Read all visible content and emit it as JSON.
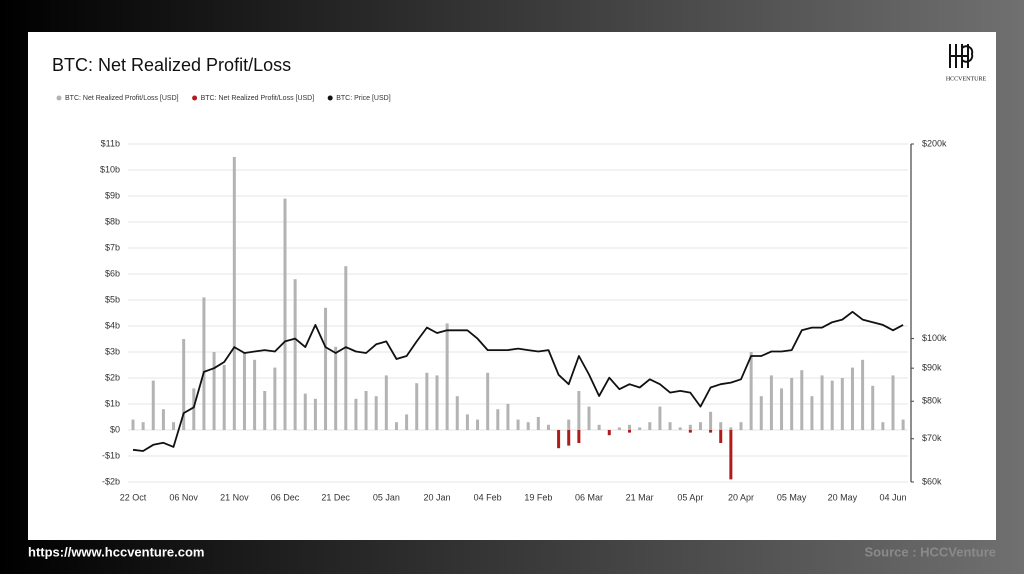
{
  "chart_data": {
    "type": "combo",
    "title": "BTC: Net Realized Profit/Loss",
    "categories": [
      "22 Oct",
      null,
      null,
      null,
      null,
      "06 Nov",
      null,
      null,
      null,
      null,
      "21 Nov",
      null,
      null,
      null,
      null,
      "06 Dec",
      null,
      null,
      null,
      null,
      "21 Dec",
      null,
      null,
      null,
      null,
      "05 Jan",
      null,
      null,
      null,
      null,
      "20 Jan",
      null,
      null,
      null,
      null,
      "04 Feb",
      null,
      null,
      null,
      null,
      "19 Feb",
      null,
      null,
      null,
      null,
      "06 Mar",
      null,
      null,
      null,
      null,
      "21 Mar",
      null,
      null,
      null,
      null,
      "05 Apr",
      null,
      null,
      null,
      null,
      "20 Apr",
      null,
      null,
      null,
      null,
      "05 May",
      null,
      null,
      null,
      null,
      "20 May",
      null,
      null,
      null,
      null,
      "04 Jun",
      null
    ],
    "series": [
      {
        "name": "BTC: Net Realized Profit/Loss [USD]",
        "type": "bar",
        "color": "#b3b3b3",
        "values": [
          0.4,
          0.3,
          1.9,
          0.8,
          0.3,
          3.5,
          1.6,
          5.1,
          3.0,
          2.5,
          10.5,
          3.0,
          2.7,
          1.5,
          2.4,
          8.9,
          5.8,
          1.4,
          1.2,
          4.7,
          3.2,
          6.3,
          1.2,
          1.5,
          1.3,
          2.1,
          0.3,
          0.6,
          1.8,
          2.2,
          2.1,
          4.1,
          1.3,
          0.6,
          0.4,
          2.2,
          0.8,
          1.0,
          0.4,
          0.3,
          0.5,
          0.2,
          null,
          0.4,
          1.5,
          0.9,
          0.2,
          null,
          0.1,
          0.2,
          0.1,
          0.3,
          0.9,
          0.3,
          0.1,
          0.2,
          0.3,
          0.7,
          0.3,
          0.1,
          0.3,
          3.0,
          1.3,
          2.1,
          1.6,
          2.0,
          2.3,
          1.3,
          2.1,
          1.9,
          2.0,
          2.4,
          2.7,
          1.7,
          0.3,
          2.1,
          0.4
        ]
      },
      {
        "name": "BTC: Net Realized Profit/Loss [USD]",
        "type": "bar",
        "color": "#b01c1c",
        "values": [
          null,
          null,
          null,
          null,
          null,
          null,
          null,
          null,
          null,
          null,
          null,
          null,
          null,
          null,
          null,
          null,
          null,
          null,
          null,
          null,
          null,
          null,
          null,
          null,
          null,
          null,
          null,
          null,
          null,
          null,
          null,
          null,
          null,
          null,
          null,
          null,
          null,
          null,
          null,
          null,
          null,
          null,
          -0.7,
          -0.6,
          -0.5,
          null,
          null,
          -0.2,
          null,
          -0.1,
          null,
          null,
          null,
          null,
          null,
          -0.1,
          null,
          -0.1,
          -0.5,
          -1.9,
          null,
          null,
          null,
          null,
          null,
          null,
          null,
          null,
          null,
          null,
          null,
          null,
          null,
          null,
          null,
          null,
          null
        ]
      },
      {
        "name": "BTC: Price [USD]",
        "type": "line",
        "axis": "y2",
        "color": "#111111",
        "values": [
          67300,
          67000,
          68500,
          69000,
          68000,
          76700,
          78300,
          88800,
          90000,
          92000,
          97000,
          95000,
          95500,
          96000,
          95500,
          99000,
          100000,
          97000,
          105000,
          97000,
          95000,
          97000,
          95500,
          95000,
          98000,
          99000,
          93000,
          94000,
          99000,
          104000,
          102000,
          103000,
          103000,
          103000,
          100000,
          96000,
          96000,
          96000,
          96500,
          96000,
          95500,
          96000,
          87900,
          85000,
          94000,
          88000,
          81500,
          87000,
          83500,
          85000,
          84000,
          86500,
          85000,
          82500,
          83000,
          82500,
          78500,
          84000,
          85000,
          85500,
          86500,
          94000,
          94000,
          95500,
          95500,
          96000,
          103000,
          104000,
          104000,
          106000,
          107000,
          110000,
          107000,
          106000,
          105000,
          103000,
          105000
        ]
      }
    ],
    "ylim": [
      -2,
      11
    ],
    "yticks": [
      {
        "value": -2,
        "label": "-$2b"
      },
      {
        "value": -1,
        "label": "-$1b"
      },
      {
        "value": 0,
        "label": "$0"
      },
      {
        "value": 1,
        "label": "$1b"
      },
      {
        "value": 2,
        "label": "$2b"
      },
      {
        "value": 3,
        "label": "$3b"
      },
      {
        "value": 4,
        "label": "$4b"
      },
      {
        "value": 5,
        "label": "$5b"
      },
      {
        "value": 6,
        "label": "$6b"
      },
      {
        "value": 7,
        "label": "$7b"
      },
      {
        "value": 8,
        "label": "$8b"
      },
      {
        "value": 9,
        "label": "$9b"
      },
      {
        "value": 10,
        "label": "$10b"
      },
      {
        "value": 11,
        "label": "$11b"
      }
    ],
    "y2lim": [
      60000,
      200000
    ],
    "y2log": true,
    "y2ticks": [
      {
        "value": 60000,
        "label": "$60k"
      },
      {
        "value": 70000,
        "label": "$70k"
      },
      {
        "value": 80000,
        "label": "$80k"
      },
      {
        "value": 90000,
        "label": "$90k"
      },
      {
        "value": 100000,
        "label": "$100k"
      },
      {
        "value": 200000,
        "label": "$200k"
      }
    ],
    "grid": true,
    "legend": "top-left"
  },
  "logo": "HCCVENTURE",
  "footer": {
    "url": "https://www.hccventure.com",
    "source": "Source : HCCVenture"
  }
}
